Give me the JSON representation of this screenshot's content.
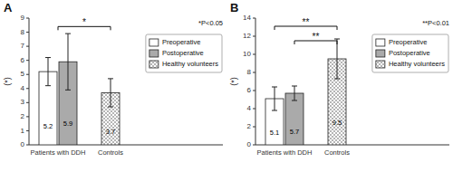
{
  "chart_data": [
    {
      "type": "bar",
      "title": "A",
      "ylabel": "(*)",
      "categories": [
        "Patients with DDH",
        "Controls"
      ],
      "series": [
        {
          "name": "Preoperative",
          "color": "white",
          "values": [
            5.2,
            null
          ],
          "errors": [
            1.0,
            null
          ]
        },
        {
          "name": "Postoperative",
          "color": "#aaaaaa",
          "values": [
            5.9,
            null
          ],
          "errors": [
            2.0,
            null
          ]
        },
        {
          "name": "Healthy volunteers",
          "color": "white",
          "values": [
            null,
            3.7
          ],
          "errors": [
            null,
            1.0
          ]
        }
      ],
      "ylim": [
        0,
        9.0
      ],
      "yticks": [
        0,
        1,
        2,
        3,
        4,
        5,
        6,
        7,
        8,
        9
      ],
      "grid": false,
      "legend": "right",
      "data_labels": true,
      "annotations": [
        {
          "text": "*",
          "from": "Patients with DDH",
          "to": "Controls",
          "y": 8.4
        },
        {
          "text": "*P<0.05"
        }
      ]
    },
    {
      "type": "bar",
      "title": "B",
      "ylabel": "(*)",
      "categories": [
        "Patients with DDH",
        "Controls"
      ],
      "series": [
        {
          "name": "Preoperative",
          "color": "white",
          "values": [
            5.1,
            null
          ],
          "errors": [
            1.3,
            null
          ]
        },
        {
          "name": "Postoperative",
          "color": "#aaaaaa",
          "values": [
            5.7,
            null
          ],
          "errors": [
            0.8,
            null
          ]
        },
        {
          "name": "Healthy volunteers",
          "color": "white",
          "values": [
            null,
            9.5
          ],
          "errors": [
            null,
            2.2
          ]
        }
      ],
      "ylim": [
        0,
        14.0
      ],
      "yticks": [
        0,
        2,
        4,
        6,
        8,
        10,
        12,
        14
      ],
      "grid": false,
      "legend": "right",
      "data_labels": true,
      "annotations": [
        {
          "text": "**",
          "from": "Preoperative",
          "to": "Healthy volunteers",
          "y": 13.1
        },
        {
          "text": "**",
          "from": "Postoperative",
          "to": "Healthy volunteers",
          "y": 11.5
        },
        {
          "text": "**P<0.01"
        }
      ]
    }
  ]
}
